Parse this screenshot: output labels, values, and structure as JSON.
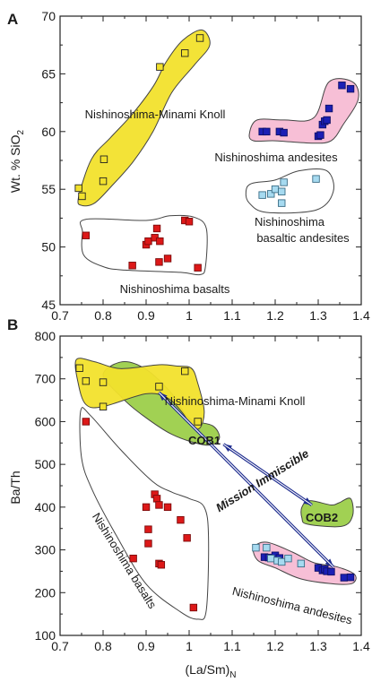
{
  "chart_data": [
    {
      "panel": "A",
      "type": "scatter",
      "ylabel": "Wt. % SiO",
      "ylabel_subscript": "2",
      "xlim": [
        0.7,
        1.4
      ],
      "ylim": [
        45,
        70
      ],
      "x_ticks": [
        "0.7",
        "0.8",
        "0.9",
        "1",
        "1.1",
        "1.2",
        "1.3",
        "1.4"
      ],
      "y_ticks": [
        "45",
        "50",
        "55",
        "60",
        "65",
        "70"
      ],
      "regions": [
        {
          "key": "nmk",
          "label": "Nishinoshima-Minami Knoll",
          "fill": "#f2e12c",
          "points": [
            {
              "x": 0.743,
              "y": 54.3
            },
            {
              "x": 0.773,
              "y": 57.6
            },
            {
              "x": 0.818,
              "y": 59.5
            },
            {
              "x": 0.87,
              "y": 61.6
            },
            {
              "x": 0.918,
              "y": 64.0
            },
            {
              "x": 0.946,
              "y": 66.0
            },
            {
              "x": 0.985,
              "y": 67.9
            },
            {
              "x": 1.03,
              "y": 68.8
            },
            {
              "x": 1.048,
              "y": 67.5
            },
            {
              "x": 1.013,
              "y": 65.8
            },
            {
              "x": 0.96,
              "y": 63.4
            },
            {
              "x": 0.916,
              "y": 60.0
            },
            {
              "x": 0.87,
              "y": 57.4
            },
            {
              "x": 0.818,
              "y": 55.2
            },
            {
              "x": 0.78,
              "y": 53.8
            },
            {
              "x": 0.75,
              "y": 53.6
            }
          ]
        },
        {
          "key": "na",
          "label": "Nishinoshima andesites",
          "fill": "#f7bcd4",
          "points": [
            {
              "x": 1.14,
              "y": 59.8
            },
            {
              "x": 1.158,
              "y": 61.0
            },
            {
              "x": 1.22,
              "y": 61.0
            },
            {
              "x": 1.29,
              "y": 61.2
            },
            {
              "x": 1.325,
              "y": 64.3
            },
            {
              "x": 1.38,
              "y": 64.3
            },
            {
              "x": 1.393,
              "y": 62.8
            },
            {
              "x": 1.358,
              "y": 60.6
            },
            {
              "x": 1.33,
              "y": 59.2
            },
            {
              "x": 1.285,
              "y": 59.0
            },
            {
              "x": 1.2,
              "y": 59.2
            },
            {
              "x": 1.15,
              "y": 59.2
            }
          ]
        },
        {
          "key": "nba",
          "label": "Nishinoshima basaltic andesites",
          "fill": "#ffffff",
          "points": [
            {
              "x": 1.132,
              "y": 54.8
            },
            {
              "x": 1.145,
              "y": 55.5
            },
            {
              "x": 1.2,
              "y": 55.8
            },
            {
              "x": 1.255,
              "y": 56.6
            },
            {
              "x": 1.32,
              "y": 56.6
            },
            {
              "x": 1.335,
              "y": 54.8
            },
            {
              "x": 1.295,
              "y": 53.2
            },
            {
              "x": 1.18,
              "y": 53.0
            },
            {
              "x": 1.14,
              "y": 53.8
            }
          ]
        },
        {
          "key": "nb",
          "label": "Nishinoshima basalts",
          "fill": "#ffffff",
          "points": [
            {
              "x": 0.752,
              "y": 51.3
            },
            {
              "x": 0.76,
              "y": 52.4
            },
            {
              "x": 0.9,
              "y": 52.3
            },
            {
              "x": 0.955,
              "y": 52.7
            },
            {
              "x": 1.01,
              "y": 52.6
            },
            {
              "x": 1.04,
              "y": 51.6
            },
            {
              "x": 1.038,
              "y": 48.3
            },
            {
              "x": 1.025,
              "y": 47.6
            },
            {
              "x": 0.98,
              "y": 47.8
            },
            {
              "x": 0.85,
              "y": 48.0
            },
            {
              "x": 0.8,
              "y": 48.3
            },
            {
              "x": 0.755,
              "y": 49.3
            }
          ]
        }
      ],
      "series": [
        {
          "key": "nmk",
          "marker": "square",
          "fill": "#f2e12c",
          "stroke": "#222222",
          "points": [
            {
              "x": 0.743,
              "y": 55.1
            },
            {
              "x": 0.751,
              "y": 54.4
            },
            {
              "x": 0.8,
              "y": 55.7
            },
            {
              "x": 0.802,
              "y": 57.6
            },
            {
              "x": 0.932,
              "y": 65.6
            },
            {
              "x": 0.99,
              "y": 66.8
            },
            {
              "x": 1.025,
              "y": 68.1
            }
          ]
        },
        {
          "key": "na",
          "marker": "square",
          "fill": "#1b1fb5",
          "stroke": "#0e1066",
          "points": [
            {
              "x": 1.17,
              "y": 60.0
            },
            {
              "x": 1.18,
              "y": 60.0
            },
            {
              "x": 1.21,
              "y": 60.0
            },
            {
              "x": 1.22,
              "y": 59.9
            },
            {
              "x": 1.3,
              "y": 59.6
            },
            {
              "x": 1.305,
              "y": 59.7
            },
            {
              "x": 1.31,
              "y": 60.6
            },
            {
              "x": 1.315,
              "y": 60.9
            },
            {
              "x": 1.32,
              "y": 61.0
            },
            {
              "x": 1.325,
              "y": 62.0
            },
            {
              "x": 1.355,
              "y": 64.0
            },
            {
              "x": 1.375,
              "y": 63.7
            }
          ]
        },
        {
          "key": "nba",
          "marker": "square",
          "fill": "#a6daf0",
          "stroke": "#3a6d86",
          "points": [
            {
              "x": 1.17,
              "y": 54.5
            },
            {
              "x": 1.19,
              "y": 54.6
            },
            {
              "x": 1.2,
              "y": 55.0
            },
            {
              "x": 1.215,
              "y": 54.8
            },
            {
              "x": 1.22,
              "y": 55.6
            },
            {
              "x": 1.215,
              "y": 53.8
            },
            {
              "x": 1.295,
              "y": 55.9
            }
          ]
        },
        {
          "key": "nb",
          "marker": "square",
          "fill": "#dd1818",
          "stroke": "#7a0a0a",
          "points": [
            {
              "x": 0.76,
              "y": 51.0
            },
            {
              "x": 0.868,
              "y": 48.4
            },
            {
              "x": 0.9,
              "y": 50.2
            },
            {
              "x": 0.905,
              "y": 50.5
            },
            {
              "x": 0.92,
              "y": 50.8
            },
            {
              "x": 0.925,
              "y": 51.6
            },
            {
              "x": 0.93,
              "y": 48.7
            },
            {
              "x": 0.932,
              "y": 50.5
            },
            {
              "x": 0.95,
              "y": 49.0
            },
            {
              "x": 0.99,
              "y": 52.3
            },
            {
              "x": 1.0,
              "y": 52.2
            },
            {
              "x": 1.02,
              "y": 48.2
            }
          ]
        }
      ]
    },
    {
      "panel": "B",
      "type": "scatter",
      "xlabel": "(La/Sm)",
      "xlabel_subscript": "N",
      "ylabel": "Ba/Th",
      "xlim": [
        0.7,
        1.4
      ],
      "ylim": [
        100,
        800
      ],
      "x_ticks": [
        "0.7",
        "0.8",
        "0.9",
        "1",
        "1.1",
        "1.2",
        "1.3",
        "1.4"
      ],
      "y_ticks": [
        "100",
        "200",
        "300",
        "400",
        "500",
        "600",
        "700",
        "800"
      ],
      "regions": [
        {
          "key": "cob1",
          "label": "COB1",
          "fill": "#9ccf4a",
          "points": [
            {
              "x": 0.8,
              "y": 710
            },
            {
              "x": 0.845,
              "y": 740
            },
            {
              "x": 0.9,
              "y": 722
            },
            {
              "x": 0.96,
              "y": 665
            },
            {
              "x": 1.0,
              "y": 608
            },
            {
              "x": 1.055,
              "y": 590
            },
            {
              "x": 1.07,
              "y": 560
            },
            {
              "x": 1.04,
              "y": 545
            },
            {
              "x": 0.96,
              "y": 570
            },
            {
              "x": 0.885,
              "y": 620
            },
            {
              "x": 0.84,
              "y": 660
            }
          ]
        },
        {
          "key": "nmk",
          "label": "Nishinoshima-Minami Knoll",
          "fill": "#f2e12c",
          "points": [
            {
              "x": 0.738,
              "y": 745
            },
            {
              "x": 0.78,
              "y": 740
            },
            {
              "x": 0.84,
              "y": 724
            },
            {
              "x": 0.93,
              "y": 733
            },
            {
              "x": 0.97,
              "y": 730
            },
            {
              "x": 1.005,
              "y": 725
            },
            {
              "x": 1.02,
              "y": 690
            },
            {
              "x": 1.035,
              "y": 625
            },
            {
              "x": 1.025,
              "y": 585
            },
            {
              "x": 1.005,
              "y": 590
            },
            {
              "x": 0.985,
              "y": 620
            },
            {
              "x": 0.95,
              "y": 655
            },
            {
              "x": 0.9,
              "y": 665
            },
            {
              "x": 0.8,
              "y": 635
            },
            {
              "x": 0.76,
              "y": 640
            },
            {
              "x": 0.742,
              "y": 690
            }
          ]
        },
        {
          "key": "cob2",
          "label": "COB2",
          "fill": "#9ccf4a",
          "points": [
            {
              "x": 1.262,
              "y": 400
            },
            {
              "x": 1.28,
              "y": 415
            },
            {
              "x": 1.33,
              "y": 405
            },
            {
              "x": 1.348,
              "y": 410
            },
            {
              "x": 1.375,
              "y": 420
            },
            {
              "x": 1.38,
              "y": 380
            },
            {
              "x": 1.355,
              "y": 355
            },
            {
              "x": 1.275,
              "y": 360
            },
            {
              "x": 1.262,
              "y": 375
            }
          ]
        },
        {
          "key": "na",
          "label": "Nishinoshima andesites",
          "fill": "#f7bcd4",
          "points": [
            {
              "x": 1.15,
              "y": 305
            },
            {
              "x": 1.18,
              "y": 318
            },
            {
              "x": 1.24,
              "y": 295
            },
            {
              "x": 1.29,
              "y": 270
            },
            {
              "x": 1.345,
              "y": 260
            },
            {
              "x": 1.385,
              "y": 242
            },
            {
              "x": 1.38,
              "y": 222
            },
            {
              "x": 1.34,
              "y": 220
            },
            {
              "x": 1.26,
              "y": 232
            },
            {
              "x": 1.2,
              "y": 258
            },
            {
              "x": 1.16,
              "y": 275
            }
          ]
        },
        {
          "key": "nb",
          "label": "Nishinoshima basalts",
          "fill": "#ffffff",
          "points": [
            {
              "x": 0.748,
              "y": 625
            },
            {
              "x": 0.77,
              "y": 615
            },
            {
              "x": 0.84,
              "y": 535
            },
            {
              "x": 0.915,
              "y": 460
            },
            {
              "x": 0.96,
              "y": 435
            },
            {
              "x": 1.0,
              "y": 420
            },
            {
              "x": 1.035,
              "y": 400
            },
            {
              "x": 1.045,
              "y": 330
            },
            {
              "x": 1.04,
              "y": 160
            },
            {
              "x": 1.02,
              "y": 138
            },
            {
              "x": 0.98,
              "y": 155
            },
            {
              "x": 0.9,
              "y": 220
            },
            {
              "x": 0.83,
              "y": 335
            },
            {
              "x": 0.775,
              "y": 440
            },
            {
              "x": 0.75,
              "y": 515
            }
          ]
        }
      ],
      "series": [
        {
          "key": "nmk",
          "marker": "square",
          "fill": "#f2e12c",
          "stroke": "#222222",
          "points": [
            {
              "x": 0.745,
              "y": 725
            },
            {
              "x": 0.76,
              "y": 695
            },
            {
              "x": 0.8,
              "y": 692
            },
            {
              "x": 0.8,
              "y": 635
            },
            {
              "x": 0.93,
              "y": 682
            },
            {
              "x": 0.99,
              "y": 718
            },
            {
              "x": 1.02,
              "y": 600
            }
          ]
        },
        {
          "key": "na",
          "marker": "square",
          "fill": "#1b1fb5",
          "stroke": "#0e1066",
          "points": [
            {
              "x": 1.175,
              "y": 283
            },
            {
              "x": 1.185,
              "y": 282
            },
            {
              "x": 1.2,
              "y": 287
            },
            {
              "x": 1.21,
              "y": 281
            },
            {
              "x": 1.3,
              "y": 258
            },
            {
              "x": 1.31,
              "y": 252
            },
            {
              "x": 1.315,
              "y": 255
            },
            {
              "x": 1.32,
              "y": 250
            },
            {
              "x": 1.33,
              "y": 249
            },
            {
              "x": 1.36,
              "y": 235
            },
            {
              "x": 1.375,
              "y": 236
            }
          ]
        },
        {
          "key": "nba",
          "marker": "square",
          "fill": "#a6daf0",
          "stroke": "#3a6d86",
          "points": [
            {
              "x": 1.155,
              "y": 305
            },
            {
              "x": 1.18,
              "y": 305
            },
            {
              "x": 1.19,
              "y": 280
            },
            {
              "x": 1.205,
              "y": 275
            },
            {
              "x": 1.215,
              "y": 272
            },
            {
              "x": 1.23,
              "y": 280
            },
            {
              "x": 1.26,
              "y": 268
            }
          ]
        },
        {
          "key": "nb",
          "marker": "square",
          "fill": "#dd1818",
          "stroke": "#7a0a0a",
          "points": [
            {
              "x": 0.76,
              "y": 600
            },
            {
              "x": 0.87,
              "y": 280
            },
            {
              "x": 0.9,
              "y": 400
            },
            {
              "x": 0.905,
              "y": 348
            },
            {
              "x": 0.905,
              "y": 315
            },
            {
              "x": 0.92,
              "y": 430
            },
            {
              "x": 0.925,
              "y": 420
            },
            {
              "x": 0.93,
              "y": 405
            },
            {
              "x": 0.93,
              "y": 268
            },
            {
              "x": 0.935,
              "y": 265
            },
            {
              "x": 0.95,
              "y": 400
            },
            {
              "x": 0.98,
              "y": 370
            },
            {
              "x": 0.995,
              "y": 328
            },
            {
              "x": 1.01,
              "y": 165
            }
          ]
        }
      ],
      "arrow_color": "#1e2c8f",
      "annotation_label": "Mission Immiscible"
    }
  ]
}
